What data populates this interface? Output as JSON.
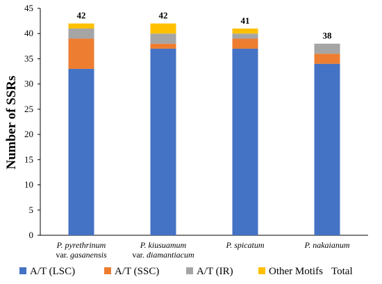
{
  "chart_data": {
    "type": "bar",
    "stacked": true,
    "ylabel": "Number of SSRs",
    "ylim": [
      0,
      45
    ],
    "yticks": [
      "0",
      "5",
      "10",
      "15",
      "20",
      "25",
      "30",
      "35",
      "40",
      "45"
    ],
    "grid": false,
    "legend_position": "bottom",
    "categories": [
      {
        "line1": "P. pyrethrinum",
        "line2_prefix": "var. ",
        "line2": "gasanensis"
      },
      {
        "line1": "P. kiusuamum",
        "line2_prefix": "var. ",
        "line2": "diamantiacum"
      },
      {
        "line1": "P. spicatum",
        "line2_prefix": "",
        "line2": ""
      },
      {
        "line1": "P. nakaianum",
        "line2_prefix": "",
        "line2": ""
      }
    ],
    "series": [
      {
        "name": "A/T (LSC)",
        "color": "#4472C4",
        "values": [
          33,
          37,
          37,
          34
        ]
      },
      {
        "name": "A/T (SSC)",
        "color": "#ED7D31",
        "values": [
          6,
          1,
          2,
          2
        ]
      },
      {
        "name": "A/T (IR)",
        "color": "#A5A5A5",
        "values": [
          2,
          2,
          1,
          2
        ]
      },
      {
        "name": "Other Motifs",
        "color": "#FFC000",
        "values": [
          1,
          2,
          1,
          0
        ]
      }
    ],
    "totals": {
      "name": "Total",
      "values": [
        "42",
        "42",
        "41",
        "38"
      ]
    }
  }
}
